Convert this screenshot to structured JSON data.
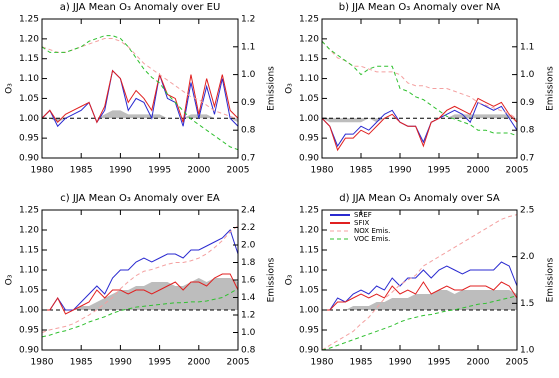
{
  "chart_data": [
    {
      "type": "line",
      "title": "a) JJA Mean O₃ Anomaly over EU",
      "ylabel": "O₃",
      "y2label": "Emissions",
      "x": [
        1980,
        1981,
        1982,
        1983,
        1984,
        1985,
        1986,
        1987,
        1988,
        1989,
        1990,
        1991,
        1992,
        1993,
        1994,
        1995,
        1996,
        1997,
        1998,
        1999,
        2000,
        2001,
        2002,
        2003,
        2004,
        2005
      ],
      "xlim": [
        1980,
        2005
      ],
      "xticks": [
        1980,
        1985,
        1990,
        1995,
        2000,
        2005
      ],
      "ylim": [
        0.9,
        1.25
      ],
      "yticks": [
        {
          "value": 0.9,
          "label": "0.90"
        },
        0.95,
        {
          "value": 1.0,
          "label": "1.00"
        },
        1.05,
        {
          "value": 1.1,
          "label": "1.10"
        },
        1.15,
        {
          "value": 1.2,
          "label": "1.20"
        },
        1.25
      ],
      "y2lim": [
        0.7,
        1.2
      ],
      "y2ticks": [
        0.7,
        0.8,
        0.9,
        {
          "value": 1.0,
          "label": "1.0"
        },
        1.1,
        1.2
      ],
      "hline": 1.0,
      "shading": {
        "color": "#bdbdbd",
        "values": [
          1.0,
          1.0,
          0.99,
          1.0,
          1.0,
          1.0,
          1.0,
          1.0,
          1.01,
          1.02,
          1.02,
          1.01,
          1.01,
          1.01,
          1.01,
          1.01,
          1.0,
          1.0,
          1.0,
          1.01,
          1.01,
          1.01,
          1.0,
          1.0,
          1.0,
          0.99
        ]
      },
      "series": [
        {
          "color": "#2a2ad0",
          "values": [
            1.0,
            1.02,
            0.98,
            1.0,
            1.01,
            1.02,
            1.04,
            0.99,
            1.02,
            1.12,
            1.1,
            1.02,
            1.05,
            1.04,
            1.0,
            1.11,
            1.05,
            1.04,
            0.98,
            1.09,
            1.0,
            1.08,
            1.01,
            1.1,
            1.0,
            0.98
          ]
        },
        {
          "color": "#e02020",
          "values": [
            1.0,
            1.02,
            0.99,
            1.01,
            1.02,
            1.03,
            1.04,
            0.99,
            1.03,
            1.12,
            1.1,
            1.04,
            1.07,
            1.05,
            1.02,
            1.11,
            1.06,
            1.05,
            0.99,
            1.11,
            1.01,
            1.1,
            1.03,
            1.11,
            1.02,
            1.0
          ]
        },
        {
          "color": "#f4a0a0",
          "dash": true,
          "axis": "y2",
          "values": [
            1.1,
            1.09,
            1.08,
            1.08,
            1.09,
            1.1,
            1.11,
            1.12,
            1.13,
            1.13,
            1.12,
            1.1,
            1.07,
            1.04,
            1.02,
            1.0,
            0.98,
            0.96,
            0.94,
            0.92,
            0.91,
            0.89,
            0.87,
            0.86,
            0.85,
            0.84
          ]
        },
        {
          "color": "#30c030",
          "dash": true,
          "axis": "y2",
          "values": [
            1.1,
            1.08,
            1.08,
            1.08,
            1.09,
            1.1,
            1.12,
            1.13,
            1.14,
            1.14,
            1.13,
            1.1,
            1.06,
            1.02,
            0.99,
            0.97,
            0.93,
            0.9,
            0.87,
            0.84,
            0.82,
            0.8,
            0.78,
            0.76,
            0.74,
            0.73
          ]
        }
      ]
    },
    {
      "type": "line",
      "title": "b) JJA Mean O₃ Anomaly over NA",
      "ylabel": "O₃",
      "y2label": "Emissions",
      "x": [
        1980,
        1981,
        1982,
        1983,
        1984,
        1985,
        1986,
        1987,
        1988,
        1989,
        1990,
        1991,
        1992,
        1993,
        1994,
        1995,
        1996,
        1997,
        1998,
        1999,
        2000,
        2001,
        2002,
        2003,
        2004,
        2005
      ],
      "xlim": [
        1980,
        2005
      ],
      "xticks": [
        1980,
        1985,
        1990,
        1995,
        2000,
        2005
      ],
      "ylim": [
        0.9,
        1.25
      ],
      "yticks": [
        {
          "value": 0.9,
          "label": "0.90"
        },
        0.95,
        {
          "value": 1.0,
          "label": "1.00"
        },
        1.05,
        {
          "value": 1.1,
          "label": "1.10"
        },
        1.15,
        {
          "value": 1.2,
          "label": "1.20"
        },
        1.25
      ],
      "y2lim": [
        0.7,
        1.2
      ],
      "y2ticks": [
        0.7,
        0.8,
        0.9,
        {
          "value": 1.0,
          "label": "1.0"
        },
        1.1
      ],
      "hline": 1.0,
      "shading": {
        "color": "#bdbdbd",
        "values": [
          1.0,
          0.99,
          0.99,
          0.99,
          0.99,
          0.99,
          1.0,
          0.99,
          1.0,
          1.0,
          1.0,
          1.0,
          1.0,
          1.0,
          1.0,
          1.0,
          1.0,
          1.01,
          1.01,
          1.01,
          1.01,
          1.01,
          1.01,
          1.01,
          1.01,
          0.99
        ]
      },
      "series": [
        {
          "color": "#2a2ad0",
          "values": [
            1.0,
            0.98,
            0.93,
            0.96,
            0.96,
            0.98,
            0.97,
            0.99,
            1.01,
            1.02,
            0.99,
            0.98,
            0.98,
            0.94,
            0.99,
            1.0,
            1.01,
            1.02,
            1.01,
            0.99,
            1.04,
            1.03,
            1.02,
            1.03,
            1.0,
            0.97
          ]
        },
        {
          "color": "#e02020",
          "values": [
            1.0,
            0.98,
            0.92,
            0.95,
            0.95,
            0.97,
            0.96,
            0.98,
            1.0,
            1.01,
            0.99,
            0.98,
            0.98,
            0.93,
            0.99,
            1.0,
            1.02,
            1.03,
            1.02,
            1.01,
            1.05,
            1.04,
            1.03,
            1.04,
            1.01,
            0.99
          ]
        },
        {
          "color": "#f4a0a0",
          "dash": true,
          "axis": "y2",
          "values": [
            1.12,
            1.09,
            1.06,
            1.05,
            1.03,
            1.03,
            1.02,
            1.01,
            1.01,
            1.01,
            1.0,
            0.97,
            0.96,
            0.96,
            0.95,
            0.95,
            0.95,
            0.94,
            0.93,
            0.92,
            0.9,
            0.89,
            0.88,
            0.87,
            0.86,
            0.84
          ]
        },
        {
          "color": "#30c030",
          "dash": true,
          "axis": "y2",
          "values": [
            1.12,
            1.09,
            1.07,
            1.05,
            1.03,
            1.0,
            1.02,
            1.03,
            1.03,
            1.03,
            0.95,
            0.94,
            0.92,
            0.91,
            0.89,
            0.87,
            0.85,
            0.84,
            0.83,
            0.82,
            0.8,
            0.8,
            0.79,
            0.79,
            0.79,
            0.78
          ]
        }
      ]
    },
    {
      "type": "line",
      "title": "c) JJA Mean O₃ Anomaly over EA",
      "ylabel": "O₃",
      "y2label": "Emissions",
      "x": [
        1980,
        1981,
        1982,
        1983,
        1984,
        1985,
        1986,
        1987,
        1988,
        1989,
        1990,
        1991,
        1992,
        1993,
        1994,
        1995,
        1996,
        1997,
        1998,
        1999,
        2000,
        2001,
        2002,
        2003,
        2004,
        2005
      ],
      "xlim": [
        1980,
        2005
      ],
      "xticks": [
        1980,
        1985,
        1990,
        1995,
        2000,
        2005
      ],
      "ylim": [
        0.9,
        1.25
      ],
      "yticks": [
        {
          "value": 0.9,
          "label": "0.90"
        },
        0.95,
        {
          "value": 1.0,
          "label": "1.00"
        },
        1.05,
        {
          "value": 1.1,
          "label": "1.10"
        },
        1.15,
        {
          "value": 1.2,
          "label": "1.20"
        },
        1.25
      ],
      "y2lim": [
        0.8,
        2.4
      ],
      "y2ticks": [
        0.8,
        {
          "value": 1.0,
          "label": "1.0"
        },
        1.2,
        1.4,
        1.6,
        1.8,
        {
          "value": 2.0,
          "label": "2.0"
        },
        2.2,
        2.4
      ],
      "hline": 1.0,
      "shading": {
        "color": "#bdbdbd",
        "values": [
          1.0,
          1.0,
          1.0,
          1.0,
          1.0,
          1.01,
          1.01,
          1.02,
          1.03,
          1.04,
          1.05,
          1.05,
          1.06,
          1.06,
          1.07,
          1.07,
          1.07,
          1.06,
          1.06,
          1.07,
          1.08,
          1.07,
          1.08,
          1.08,
          1.08,
          1.07
        ]
      },
      "series": [
        {
          "color": "#2a2ad0",
          "values": [
            1.0,
            1.0,
            1.03,
            1.0,
            1.0,
            1.02,
            1.04,
            1.06,
            1.04,
            1.08,
            1.1,
            1.1,
            1.12,
            1.13,
            1.12,
            1.13,
            1.14,
            1.14,
            1.13,
            1.15,
            1.15,
            1.16,
            1.17,
            1.18,
            1.2,
            1.14
          ]
        },
        {
          "color": "#e02020",
          "values": [
            1.0,
            1.0,
            1.03,
            0.99,
            1.0,
            1.01,
            1.02,
            1.05,
            1.03,
            1.05,
            1.05,
            1.04,
            1.05,
            1.05,
            1.04,
            1.05,
            1.06,
            1.07,
            1.05,
            1.07,
            1.07,
            1.06,
            1.08,
            1.09,
            1.09,
            1.05
          ]
        },
        {
          "color": "#f4a0a0",
          "dash": true,
          "axis": "y2",
          "values": [
            1.0,
            1.03,
            1.05,
            1.07,
            1.1,
            1.15,
            1.2,
            1.26,
            1.33,
            1.4,
            1.5,
            1.58,
            1.65,
            1.7,
            1.72,
            1.75,
            1.78,
            1.8,
            1.8,
            1.82,
            1.85,
            1.9,
            1.97,
            2.05,
            2.15,
            2.22
          ]
        },
        {
          "color": "#30c030",
          "dash": true,
          "axis": "y2",
          "values": [
            0.95,
            0.97,
            1.0,
            1.02,
            1.05,
            1.08,
            1.12,
            1.15,
            1.18,
            1.22,
            1.25,
            1.27,
            1.29,
            1.3,
            1.31,
            1.32,
            1.33,
            1.34,
            1.34,
            1.35,
            1.35,
            1.36,
            1.38,
            1.4,
            1.45,
            1.5
          ]
        }
      ]
    },
    {
      "type": "line",
      "title": "d) JJA Mean O₃ Anomaly over SA",
      "ylabel": "O₃",
      "y2label": "Emissions",
      "legend": "upper left",
      "x": [
        1980,
        1981,
        1982,
        1983,
        1984,
        1985,
        1986,
        1987,
        1988,
        1989,
        1990,
        1991,
        1992,
        1993,
        1994,
        1995,
        1996,
        1997,
        1998,
        1999,
        2000,
        2001,
        2002,
        2003,
        2004,
        2005
      ],
      "xlim": [
        1980,
        2005
      ],
      "xticks": [
        1980,
        1985,
        1990,
        1995,
        2000,
        2005
      ],
      "ylim": [
        0.9,
        1.25
      ],
      "yticks": [
        {
          "value": 0.9,
          "label": "0.90"
        },
        0.95,
        {
          "value": 1.0,
          "label": "1.00"
        },
        1.05,
        {
          "value": 1.1,
          "label": "1.10"
        },
        1.15,
        {
          "value": 1.2,
          "label": "1.20"
        },
        1.25
      ],
      "y2lim": [
        1.0,
        2.5
      ],
      "y2ticks": [
        {
          "value": 1.0,
          "label": "1.0"
        },
        1.5,
        {
          "value": 2.0,
          "label": "2.0"
        },
        2.5
      ],
      "hline": 1.0,
      "shading": {
        "color": "#bdbdbd",
        "values": [
          1.0,
          1.0,
          1.0,
          1.0,
          1.01,
          1.01,
          1.01,
          1.02,
          1.02,
          1.03,
          1.03,
          1.03,
          1.04,
          1.04,
          1.04,
          1.05,
          1.05,
          1.04,
          1.05,
          1.05,
          1.05,
          1.05,
          1.05,
          1.05,
          1.05,
          1.04
        ]
      },
      "series": [
        {
          "name": "SREF",
          "color": "#2a2ad0",
          "values": [
            1.0,
            1.0,
            1.03,
            1.02,
            1.04,
            1.05,
            1.04,
            1.06,
            1.05,
            1.08,
            1.06,
            1.08,
            1.08,
            1.1,
            1.08,
            1.1,
            1.11,
            1.1,
            1.09,
            1.1,
            1.1,
            1.1,
            1.1,
            1.12,
            1.11,
            1.06
          ]
        },
        {
          "name": "SFIX",
          "color": "#e02020",
          "values": [
            1.0,
            1.0,
            1.02,
            1.02,
            1.03,
            1.04,
            1.03,
            1.04,
            1.03,
            1.06,
            1.04,
            1.05,
            1.04,
            1.07,
            1.04,
            1.05,
            1.06,
            1.05,
            1.05,
            1.06,
            1.06,
            1.06,
            1.05,
            1.07,
            1.06,
            1.03
          ]
        },
        {
          "name": "NOX Emis.",
          "color": "#f4a0a0",
          "dash": true,
          "axis": "y2",
          "values": [
            1.0,
            1.05,
            1.1,
            1.15,
            1.2,
            1.28,
            1.35,
            1.45,
            1.55,
            1.62,
            1.7,
            1.75,
            1.8,
            1.9,
            1.95,
            2.0,
            2.05,
            2.1,
            2.15,
            2.2,
            2.25,
            2.3,
            2.35,
            2.4,
            2.43,
            2.45
          ]
        },
        {
          "name": "VOC Emis.",
          "color": "#30c030",
          "dash": true,
          "axis": "y2",
          "values": [
            1.0,
            1.02,
            1.05,
            1.08,
            1.11,
            1.14,
            1.17,
            1.2,
            1.23,
            1.26,
            1.3,
            1.33,
            1.35,
            1.37,
            1.38,
            1.4,
            1.42,
            1.43,
            1.45,
            1.47,
            1.49,
            1.5,
            1.52,
            1.54,
            1.56,
            1.58
          ]
        }
      ]
    }
  ]
}
